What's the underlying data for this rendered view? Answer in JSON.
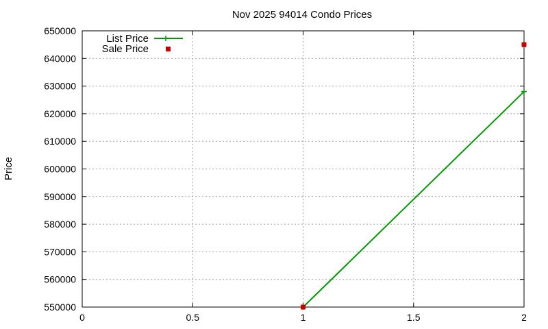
{
  "chart_data": {
    "type": "line",
    "title": "Nov 2025 94014 Condo Prices",
    "xlabel": "",
    "ylabel": "Price",
    "xlim": [
      0,
      2
    ],
    "ylim": [
      550000,
      650000
    ],
    "xticks": [
      0,
      0.5,
      1,
      1.5,
      2
    ],
    "xtick_labels": [
      "0",
      "0.5",
      "1",
      "1.5",
      "2"
    ],
    "yticks": [
      550000,
      560000,
      570000,
      580000,
      590000,
      600000,
      610000,
      620000,
      630000,
      640000,
      650000
    ],
    "ytick_labels": [
      "550000",
      "560000",
      "570000",
      "580000",
      "590000",
      "600000",
      "610000",
      "620000",
      "630000",
      "640000",
      "650000"
    ],
    "grid": true,
    "legend_position": "top-left",
    "series": [
      {
        "name": "List Price",
        "style": "linespoints",
        "marker": "plus",
        "color": "#009900",
        "points": [
          {
            "x": 1,
            "y": 550000
          },
          {
            "x": 2,
            "y": 628000
          }
        ]
      },
      {
        "name": "Sale Price",
        "style": "points",
        "marker": "square",
        "color": "#cc0000",
        "points": [
          {
            "x": 1,
            "y": 550000
          },
          {
            "x": 2,
            "y": 645000
          }
        ]
      }
    ]
  }
}
